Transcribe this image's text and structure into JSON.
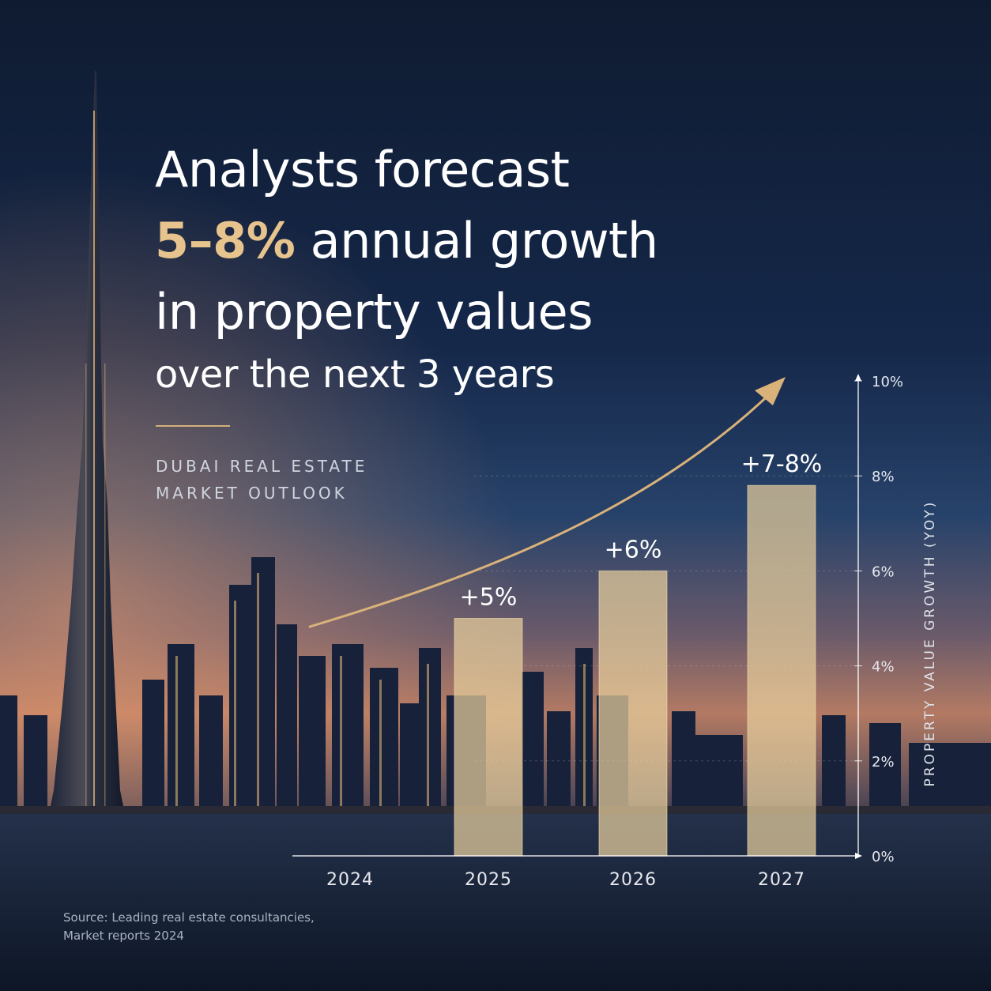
{
  "headline": {
    "line1": "Analysts forecast",
    "line2_accent": "5–8%",
    "line2_rest": "annual growth",
    "line3": "in property values",
    "line4": "over the next 3 years"
  },
  "subtitle": {
    "line1": "DUBAI REAL ESTATE",
    "line2": "MARKET OUTLOOK"
  },
  "source": {
    "line1": "Source: Leading real estate consultancies,",
    "line2": "Market reports 2024"
  },
  "colors": {
    "accent": "#e7c48d",
    "bar": "#e8cf9c",
    "arrow": "#d9b27a",
    "text": "#ffffff"
  },
  "chart_data": {
    "type": "bar",
    "categories": [
      "2024",
      "2025",
      "2026",
      "2027"
    ],
    "values": [
      null,
      5,
      6,
      7.8
    ],
    "data_labels": [
      "",
      "+5%",
      "+6%",
      "+7-8%"
    ],
    "ylabel": "PROPERTY VALUE GROWTH (YOY)",
    "ylim": [
      0,
      10
    ],
    "yticks": [
      0,
      2,
      4,
      6,
      8,
      10
    ],
    "ytick_labels": [
      "0%",
      "2%",
      "4%",
      "6%",
      "8%",
      "10%"
    ],
    "grid": true,
    "trend_arrow": true
  }
}
